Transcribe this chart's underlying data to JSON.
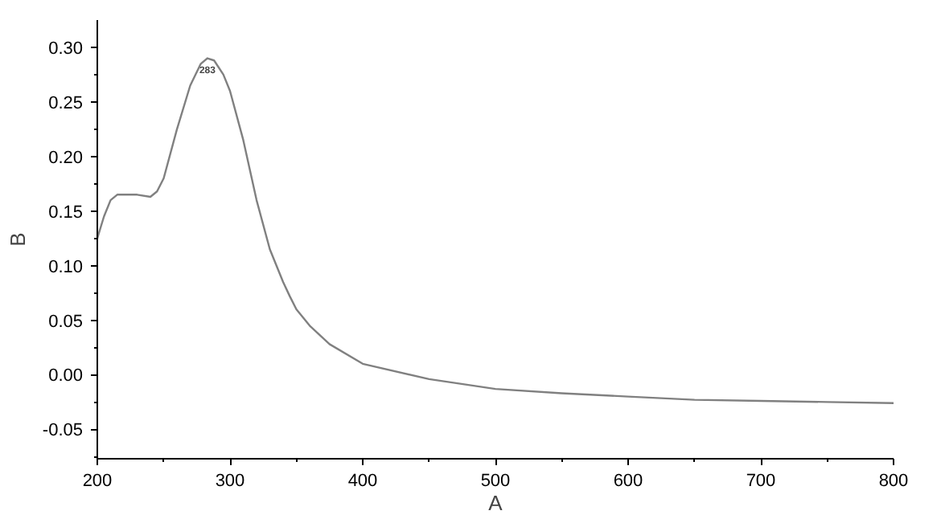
{
  "chart_data": {
    "type": "line",
    "xlabel": "A",
    "ylabel": "B",
    "x": [
      200,
      205,
      210,
      215,
      220,
      230,
      240,
      245,
      250,
      260,
      270,
      278,
      283,
      288,
      295,
      300,
      310,
      320,
      330,
      340,
      345,
      350,
      360,
      375,
      400,
      450,
      500,
      550,
      600,
      650,
      700,
      750,
      800
    ],
    "series": [
      {
        "color": "#808080",
        "values": [
          0.125,
          0.145,
          0.16,
          0.165,
          0.165,
          0.165,
          0.163,
          0.168,
          0.18,
          0.225,
          0.265,
          0.285,
          0.29,
          0.288,
          0.275,
          0.26,
          0.215,
          0.16,
          0.115,
          0.085,
          0.072,
          0.06,
          0.045,
          0.028,
          0.01,
          -0.004,
          -0.013,
          -0.017,
          -0.02,
          -0.023,
          -0.024,
          -0.025,
          -0.026
        ]
      }
    ],
    "xlim": [
      200,
      800
    ],
    "ylim": [
      -0.077,
      0.325
    ],
    "xticks": [
      200,
      {
        "value": 250,
        "label": null
      },
      300,
      {
        "value": 350,
        "label": null
      },
      400,
      {
        "value": 450,
        "label": null
      },
      500,
      {
        "value": 550,
        "label": null
      },
      600,
      {
        "value": 650,
        "label": null
      },
      700,
      {
        "value": 750,
        "label": null
      },
      800
    ],
    "yticks": [
      {
        "value": -0.075,
        "label": null
      },
      {
        "value": -0.05,
        "label": "-0.05"
      },
      {
        "value": -0.025,
        "label": null
      },
      {
        "value": 0,
        "label": "0.00"
      },
      {
        "value": 0.025,
        "label": null
      },
      {
        "value": 0.05,
        "label": "0.05"
      },
      {
        "value": 0.075,
        "label": null
      },
      {
        "value": 0.1,
        "label": "0.10"
      },
      {
        "value": 0.125,
        "label": null
      },
      {
        "value": 0.15,
        "label": "0.15"
      },
      {
        "value": 0.175,
        "label": null
      },
      {
        "value": 0.2,
        "label": "0.20"
      },
      {
        "value": 0.225,
        "label": null
      },
      {
        "value": 0.25,
        "label": "0.25"
      },
      {
        "value": 0.275,
        "label": null
      },
      {
        "value": 0.3,
        "label": "0.30"
      }
    ],
    "annotations": [
      {
        "text": "283",
        "x": 283,
        "y": 0.28
      }
    ],
    "grid": false
  }
}
